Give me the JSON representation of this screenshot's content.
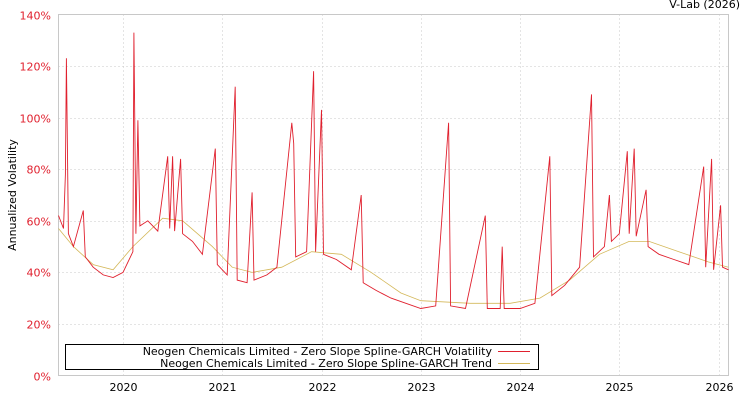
{
  "credit": "V-Lab (2026)",
  "chart_data": {
    "type": "line",
    "title": "",
    "xlabel": "",
    "ylabel": "Annualized Volatility",
    "xlim": [
      2019.35,
      2026.1
    ],
    "ylim": [
      0,
      140
    ],
    "x_ticks": [
      2020,
      2021,
      2022,
      2023,
      2024,
      2025,
      2026
    ],
    "x_tick_labels": [
      "2020",
      "2021",
      "2022",
      "2023",
      "2024",
      "2025",
      "2026"
    ],
    "y_ticks": [
      0,
      20,
      40,
      60,
      80,
      100,
      120,
      140
    ],
    "y_tick_labels": [
      "0%",
      "20%",
      "40%",
      "60%",
      "80%",
      "100%",
      "120%",
      "140%"
    ],
    "grid": true,
    "legend_position": "bottom-left",
    "series": [
      {
        "name": "Neogen Chemicals Limited - Zero Slope Spline-GARCH Volatility",
        "color": "#e0202e",
        "points": [
          [
            2019.35,
            62
          ],
          [
            2019.4,
            57
          ],
          [
            2019.42,
            78
          ],
          [
            2019.43,
            123
          ],
          [
            2019.45,
            55
          ],
          [
            2019.5,
            50
          ],
          [
            2019.6,
            64
          ],
          [
            2019.62,
            46
          ],
          [
            2019.7,
            42
          ],
          [
            2019.8,
            39
          ],
          [
            2019.9,
            38
          ],
          [
            2020.0,
            40
          ],
          [
            2020.1,
            48
          ],
          [
            2020.11,
            133
          ],
          [
            2020.13,
            55
          ],
          [
            2020.15,
            99
          ],
          [
            2020.17,
            58
          ],
          [
            2020.25,
            60
          ],
          [
            2020.35,
            56
          ],
          [
            2020.45,
            85
          ],
          [
            2020.47,
            57
          ],
          [
            2020.5,
            85
          ],
          [
            2020.52,
            56
          ],
          [
            2020.58,
            84
          ],
          [
            2020.6,
            55
          ],
          [
            2020.7,
            52
          ],
          [
            2020.8,
            47
          ],
          [
            2020.93,
            88
          ],
          [
            2020.95,
            43
          ],
          [
            2021.05,
            39
          ],
          [
            2021.13,
            112
          ],
          [
            2021.15,
            37
          ],
          [
            2021.25,
            36
          ],
          [
            2021.3,
            71
          ],
          [
            2021.32,
            37
          ],
          [
            2021.45,
            39
          ],
          [
            2021.55,
            42
          ],
          [
            2021.7,
            98
          ],
          [
            2021.72,
            90
          ],
          [
            2021.74,
            46
          ],
          [
            2021.85,
            48
          ],
          [
            2021.92,
            118
          ],
          [
            2021.94,
            48
          ],
          [
            2022.0,
            103
          ],
          [
            2022.02,
            47
          ],
          [
            2022.15,
            45
          ],
          [
            2022.3,
            41
          ],
          [
            2022.4,
            70
          ],
          [
            2022.42,
            36
          ],
          [
            2022.55,
            33
          ],
          [
            2022.7,
            30
          ],
          [
            2022.85,
            28
          ],
          [
            2023.0,
            26
          ],
          [
            2023.15,
            27
          ],
          [
            2023.28,
            98
          ],
          [
            2023.3,
            27
          ],
          [
            2023.45,
            26
          ],
          [
            2023.65,
            62
          ],
          [
            2023.67,
            26
          ],
          [
            2023.8,
            26
          ],
          [
            2023.82,
            50
          ],
          [
            2023.84,
            26
          ],
          [
            2024.0,
            26
          ],
          [
            2024.15,
            28
          ],
          [
            2024.3,
            85
          ],
          [
            2024.32,
            31
          ],
          [
            2024.45,
            35
          ],
          [
            2024.6,
            42
          ],
          [
            2024.72,
            109
          ],
          [
            2024.74,
            46
          ],
          [
            2024.85,
            50
          ],
          [
            2024.9,
            70
          ],
          [
            2024.92,
            52
          ],
          [
            2025.0,
            55
          ],
          [
            2025.08,
            87
          ],
          [
            2025.1,
            55
          ],
          [
            2025.15,
            88
          ],
          [
            2025.17,
            54
          ],
          [
            2025.27,
            72
          ],
          [
            2025.29,
            50
          ],
          [
            2025.4,
            47
          ],
          [
            2025.55,
            45
          ],
          [
            2025.7,
            43
          ],
          [
            2025.85,
            81
          ],
          [
            2025.87,
            42
          ],
          [
            2025.93,
            84
          ],
          [
            2025.95,
            41
          ],
          [
            2026.02,
            66
          ],
          [
            2026.04,
            42
          ],
          [
            2026.1,
            41
          ]
        ]
      },
      {
        "name": "Neogen Chemicals Limited - Zero Slope Spline-GARCH Trend",
        "color": "#d4b85a",
        "points": [
          [
            2019.35,
            57
          ],
          [
            2019.5,
            50
          ],
          [
            2019.7,
            43
          ],
          [
            2019.9,
            41
          ],
          [
            2020.1,
            50
          ],
          [
            2020.4,
            61
          ],
          [
            2020.6,
            60
          ],
          [
            2020.9,
            50
          ],
          [
            2021.1,
            42
          ],
          [
            2021.3,
            40
          ],
          [
            2021.6,
            42
          ],
          [
            2021.9,
            48
          ],
          [
            2022.2,
            47
          ],
          [
            2022.5,
            40
          ],
          [
            2022.8,
            32
          ],
          [
            2023.0,
            29
          ],
          [
            2023.5,
            28
          ],
          [
            2023.9,
            28
          ],
          [
            2024.2,
            30
          ],
          [
            2024.5,
            37
          ],
          [
            2024.8,
            47
          ],
          [
            2025.1,
            52
          ],
          [
            2025.3,
            52
          ],
          [
            2025.6,
            48
          ],
          [
            2025.9,
            44
          ],
          [
            2026.1,
            42
          ]
        ]
      }
    ]
  }
}
